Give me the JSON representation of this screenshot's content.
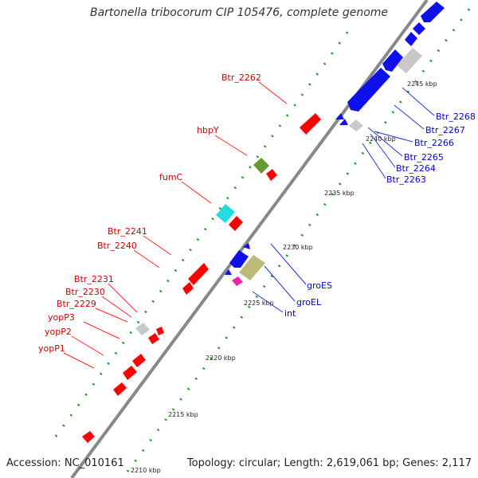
{
  "title": "Bartonella tribocorum CIP 105476, complete genome",
  "footer": {
    "accession": "Accession: NC_010161",
    "summary": "Topology: circular; Length: 2,619,061 bp; Genes: 2,117"
  },
  "colors": {
    "forward_gene": "#ff0000",
    "reverse_gene": "#1010ee",
    "other_gene": "#c8c8c8",
    "tick": "#229922",
    "backbone": "#888888",
    "label_red": "#cc0000",
    "label_blue": "#0000cc"
  },
  "ticks": [
    {
      "label": "2210 kbp"
    },
    {
      "label": "2215 kbp"
    },
    {
      "label": "2220 kbp"
    },
    {
      "label": "2225 kbp"
    },
    {
      "label": "2230 kbp"
    },
    {
      "label": "2235 kbp"
    },
    {
      "label": "2240 kbp"
    },
    {
      "label": "2245 kbp"
    }
  ],
  "gene_labels_forward": [
    "Btr_2262",
    "hbpY",
    "fumC",
    "Btr_2241",
    "Btr_2240",
    "Btr_2231",
    "Btr_2230",
    "Btr_2229",
    "yopP3",
    "yopP2",
    "yopP1"
  ],
  "gene_labels_reverse": [
    "Btr_2268",
    "Btr_2267",
    "Btr_2266",
    "Btr_2265",
    "Btr_2264",
    "Btr_2263",
    "groES",
    "groEL",
    "int"
  ]
}
